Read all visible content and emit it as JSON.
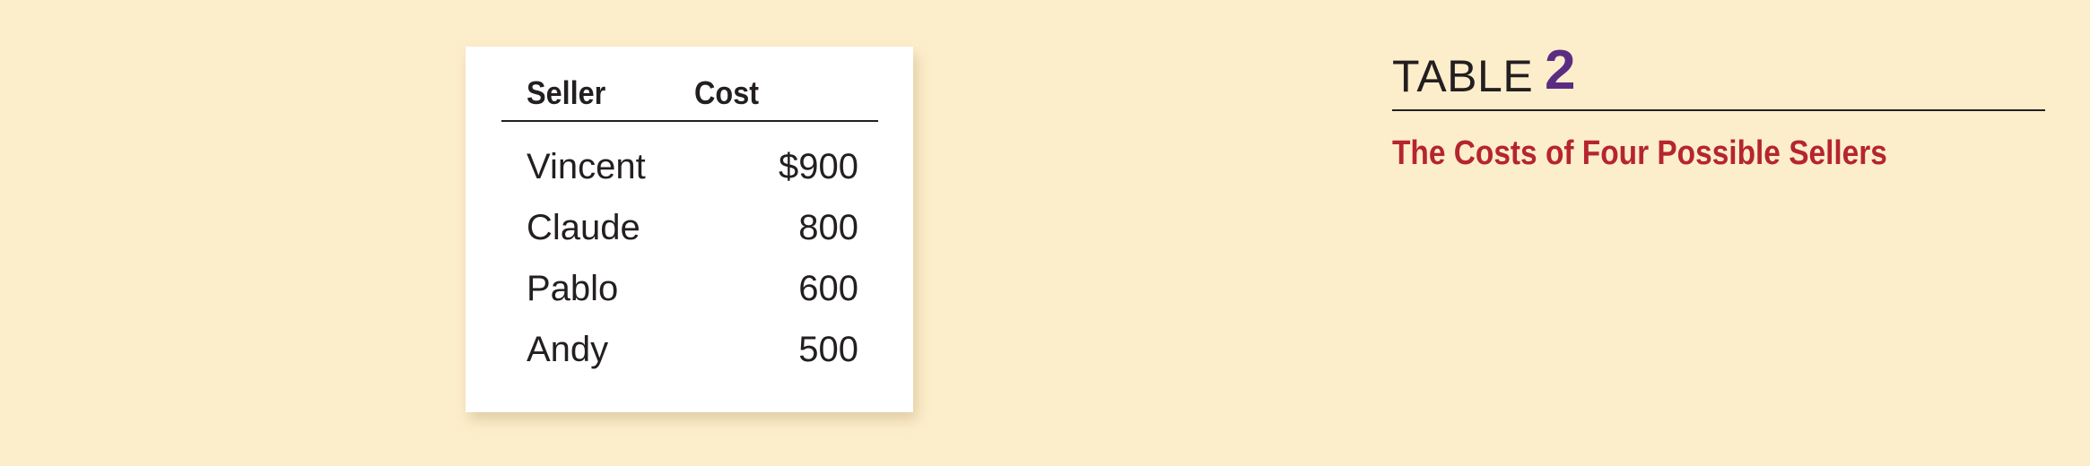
{
  "caption": {
    "label": "TABLE",
    "number": "2",
    "title": "The Costs of Four Possible Sellers"
  },
  "table": {
    "headers": [
      "Seller",
      "Cost"
    ],
    "rows": [
      {
        "seller": "Vincent",
        "cost": "$900"
      },
      {
        "seller": "Claude",
        "cost": "800"
      },
      {
        "seller": "Pablo",
        "cost": "600"
      },
      {
        "seller": "Andy",
        "cost": "500"
      }
    ]
  },
  "colors": {
    "background": "#fdeecb",
    "card": "#ffffff",
    "text": "#231f20",
    "table_number": "#5b2d82",
    "caption_title": "#b5252f"
  }
}
